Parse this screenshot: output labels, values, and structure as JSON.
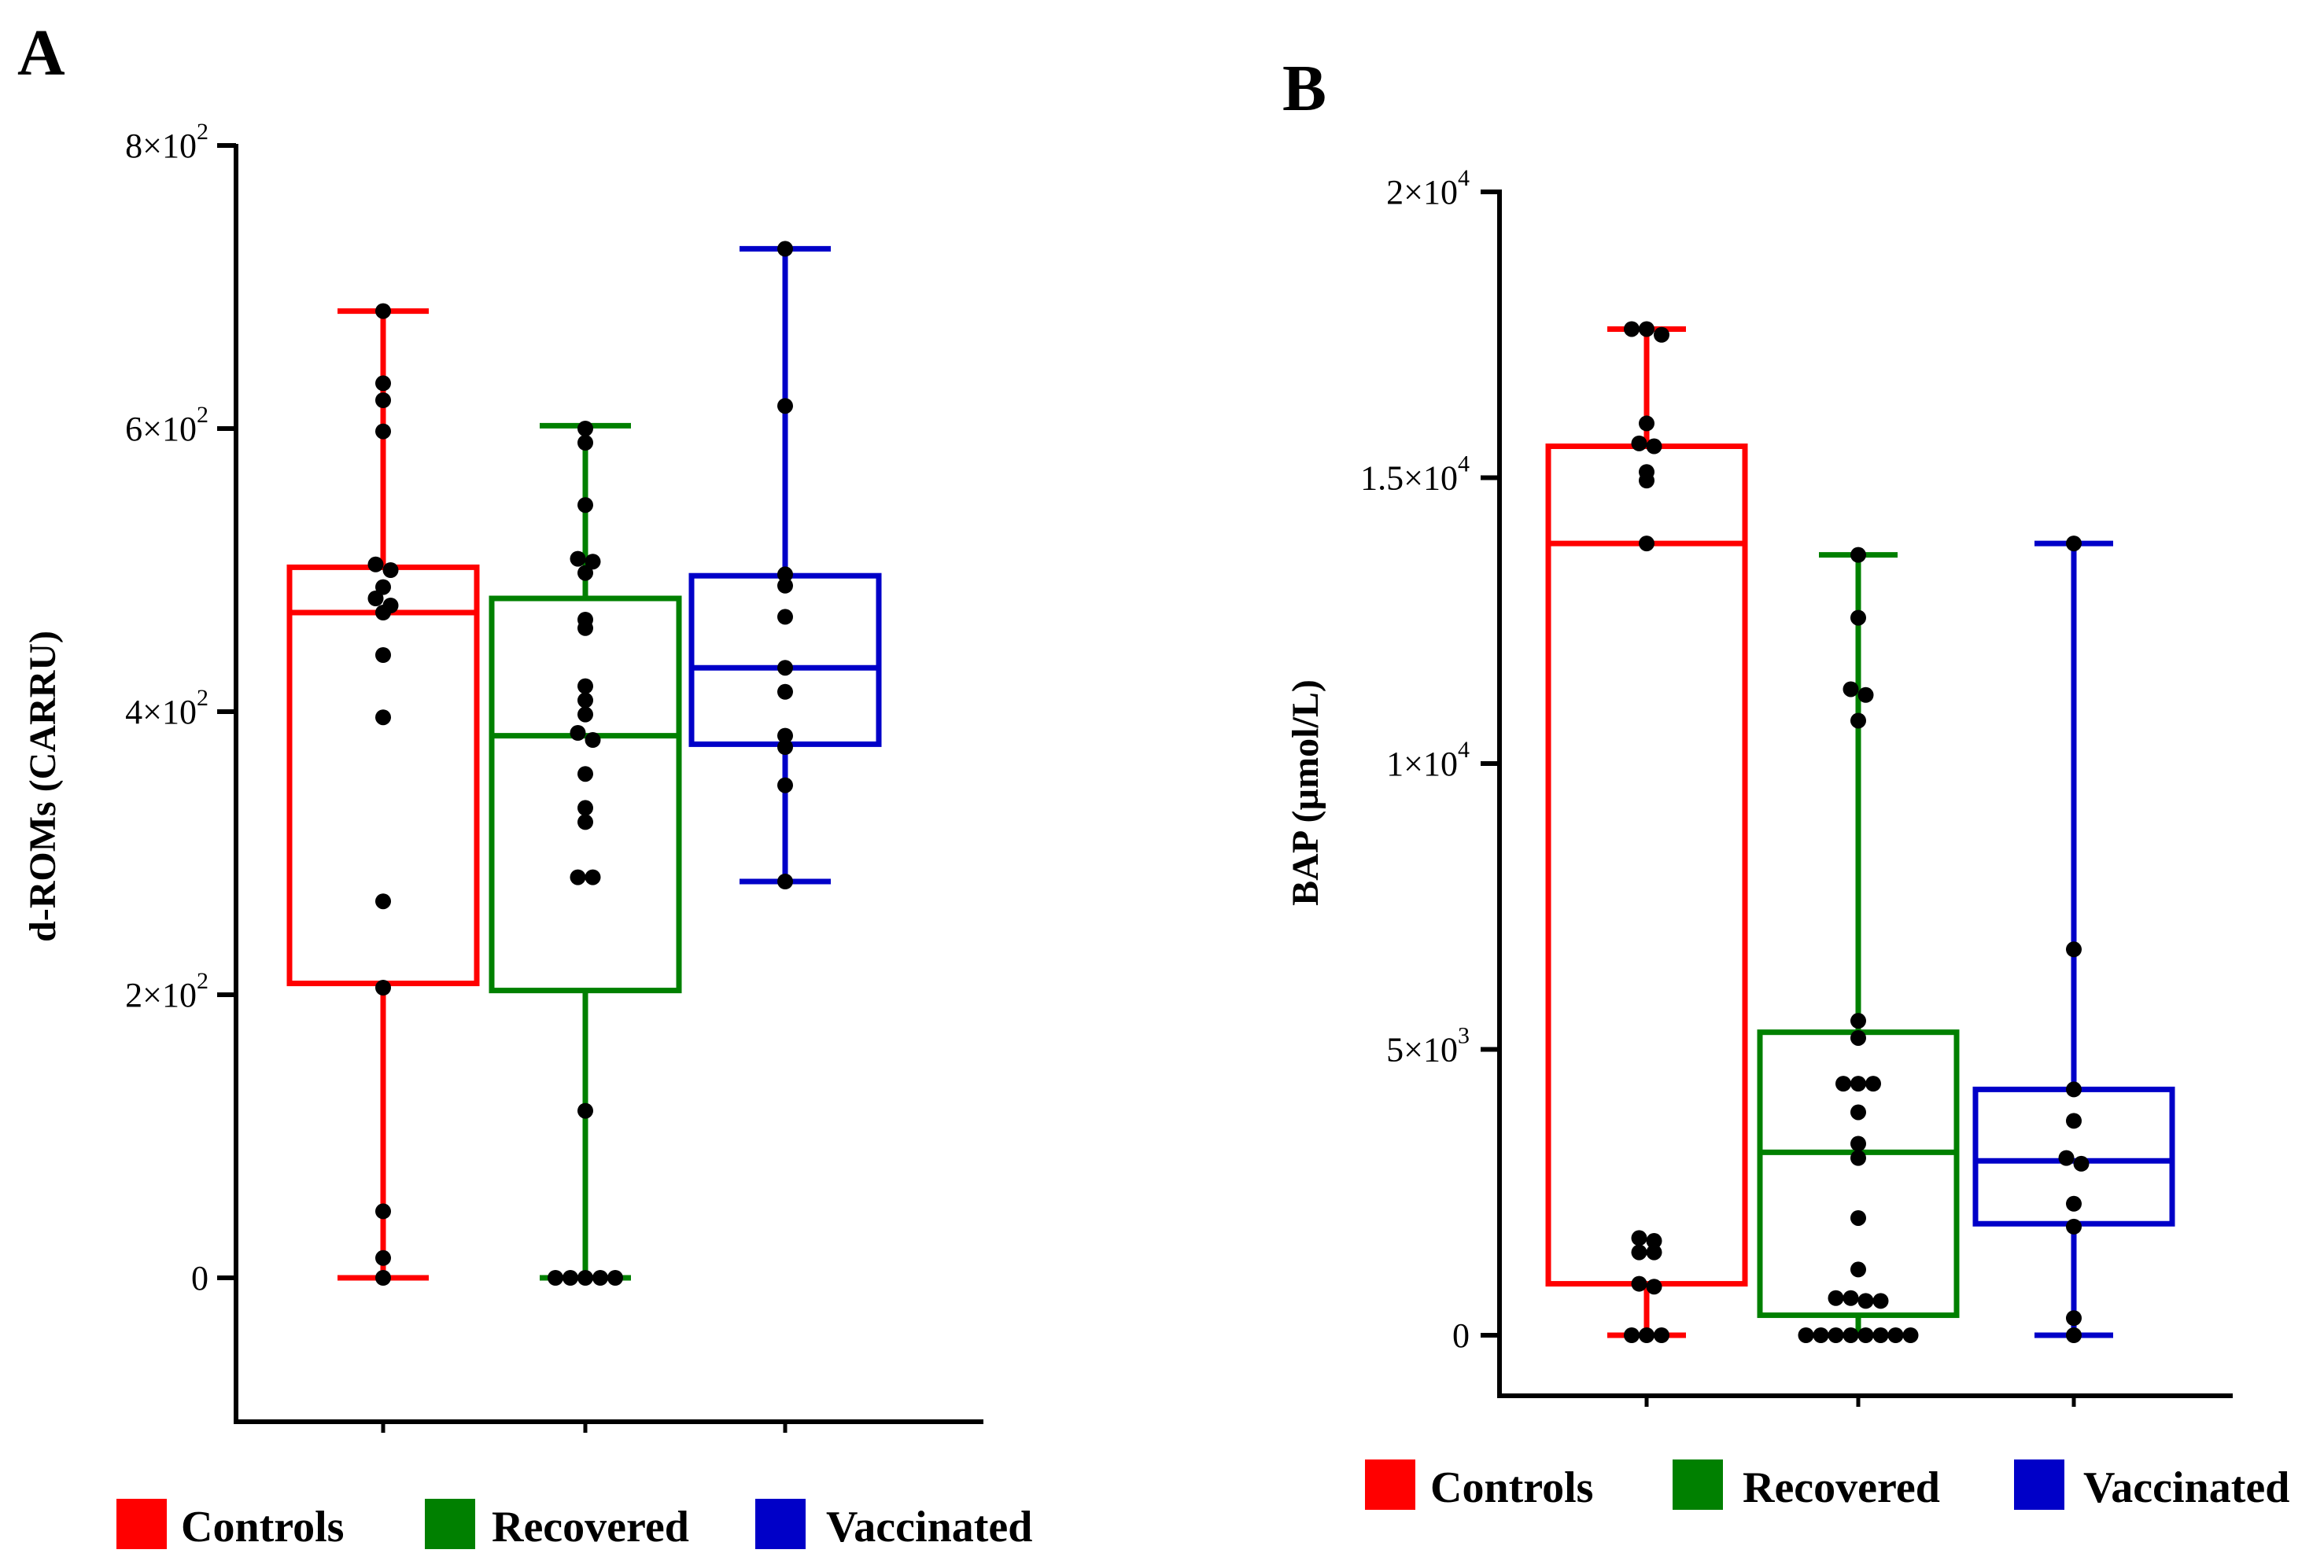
{
  "colors": {
    "controls": "#ff0000",
    "recovered": "#008000",
    "vaccinated": "#0000c8",
    "points": "#000000"
  },
  "chart_data": [
    {
      "panel": "A",
      "type": "box",
      "ylabel": "d-ROMs (CARRU)",
      "ylim": [
        -100,
        800
      ],
      "ticks": [
        {
          "value": 0,
          "base": "0",
          "exp": ""
        },
        {
          "value": 200,
          "base": "2×10",
          "exp": "2"
        },
        {
          "value": 400,
          "base": "4×10",
          "exp": "2"
        },
        {
          "value": 600,
          "base": "6×10",
          "exp": "2"
        },
        {
          "value": 800,
          "base": "8×10",
          "exp": "2"
        }
      ],
      "groups": [
        {
          "name": "Controls",
          "color": "#ff0000",
          "min": 0,
          "q1": 208,
          "median": 470,
          "q3": 502,
          "max": 683,
          "points": [
            683,
            632,
            620,
            598,
            504,
            500,
            488,
            480,
            475,
            470,
            440,
            396,
            266,
            205,
            47,
            14,
            0
          ]
        },
        {
          "name": "Recovered",
          "color": "#008000",
          "min": 0,
          "q1": 203,
          "median": 383,
          "q3": 480,
          "max": 602,
          "points": [
            600,
            590,
            546,
            508,
            506,
            498,
            465,
            459,
            418,
            408,
            398,
            385,
            380,
            356,
            332,
            322,
            283,
            283,
            118,
            0,
            0,
            0,
            0,
            0
          ]
        },
        {
          "name": "Vaccinated",
          "color": "#0000c8",
          "min": 280,
          "q1": 377,
          "median": 431,
          "q3": 496,
          "max": 727,
          "points": [
            727,
            616,
            497,
            489,
            467,
            431,
            414,
            383,
            375,
            348,
            280
          ]
        }
      ]
    },
    {
      "panel": "B",
      "type": "box",
      "ylabel": "BAP (µmol/L)",
      "ylim": [
        -1000,
        20000
      ],
      "ticks": [
        {
          "value": 0,
          "base": "0",
          "exp": ""
        },
        {
          "value": 5000,
          "base": "5×10",
          "exp": "3"
        },
        {
          "value": 10000,
          "base": "1×10",
          "exp": "4"
        },
        {
          "value": 15000,
          "base": "1.5×10",
          "exp": "4"
        },
        {
          "value": 20000,
          "base": "2×10",
          "exp": "4"
        }
      ],
      "groups": [
        {
          "name": "Controls",
          "color": "#ff0000",
          "min": 0,
          "q1": 900,
          "median": 13850,
          "q3": 15550,
          "max": 17600,
          "points": [
            17600,
            17500,
            17600,
            15950,
            15550,
            15600,
            15100,
            14950,
            13850,
            1700,
            1650,
            1450,
            1450,
            900,
            850,
            0,
            0,
            0
          ]
        },
        {
          "name": "Recovered",
          "color": "#008000",
          "min": 0,
          "q1": 350,
          "median": 3200,
          "q3": 5300,
          "max": 13650,
          "points": [
            13650,
            12550,
            11300,
            11200,
            10750,
            5500,
            5200,
            4400,
            4400,
            4400,
            3900,
            3350,
            3100,
            2050,
            1150,
            650,
            650,
            600,
            600,
            0,
            0,
            0,
            0,
            0,
            0,
            0,
            0
          ]
        },
        {
          "name": "Vaccinated",
          "color": "#0000c8",
          "min": 0,
          "q1": 1950,
          "median": 3050,
          "q3": 4300,
          "max": 13850,
          "points": [
            13850,
            6750,
            4300,
            3750,
            3100,
            3000,
            2300,
            1900,
            300,
            0
          ]
        }
      ]
    }
  ]
}
